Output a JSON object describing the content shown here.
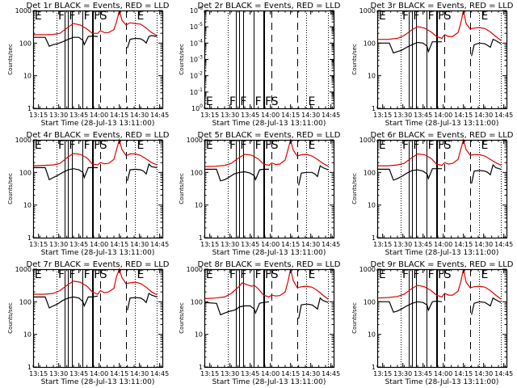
{
  "chart_data": {
    "type": "line",
    "layout": "3x3 grid",
    "xlabel": "Start Time (28-Jul-13 13:11:00)",
    "ylabel": "Counts/sec",
    "x_range_minutes_after_start": [
      0,
      96
    ],
    "x_ticks": [
      {
        "label": "13:15",
        "min": 4
      },
      {
        "label": "13:30",
        "min": 19
      },
      {
        "label": "13:45",
        "min": 34
      },
      {
        "label": "14:00",
        "min": 49
      },
      {
        "label": "14:15",
        "min": 64
      },
      {
        "label": "14:30",
        "min": 79
      },
      {
        "label": "14:45",
        "min": 94
      }
    ],
    "legend": {
      "black": "Events",
      "red": "LLD"
    },
    "series_colors": {
      "events": "#000000",
      "lld": "#e00000"
    },
    "event_lines": [
      {
        "min": 17.5,
        "style": "dotted"
      },
      {
        "min": 23.5,
        "style": "solid"
      },
      {
        "min": 25.5,
        "style": "solid"
      },
      {
        "min": 28.5,
        "style": "solid"
      },
      {
        "min": 36.5,
        "style": "solid"
      },
      {
        "min": 43.5,
        "style": "solid"
      },
      {
        "min": 44.3,
        "style": "solid"
      },
      {
        "min": 49.8,
        "style": "dashed"
      },
      {
        "min": 69.0,
        "style": "dashed"
      },
      {
        "min": 75.5,
        "style": "dotted"
      },
      {
        "min": 92.0,
        "style": "dotted"
      }
    ],
    "event_markers": [
      {
        "label": "E",
        "min": 0.5
      },
      {
        "label": "F",
        "min": 18.0
      },
      {
        "label": "F",
        "min": 26.0
      },
      {
        "label": "F",
        "min": 37.0
      },
      {
        "label": "F",
        "min": 44.5
      },
      {
        "label": "S",
        "min": 49.0
      },
      {
        "label": "E",
        "min": 76.5
      }
    ],
    "panels": [
      {
        "title": "Det 1r BLACK = Events, RED = LLD",
        "yscale": "log",
        "ylim": [
          1,
          1000
        ],
        "y_ticks": [
          "1",
          "10",
          "100",
          "1000"
        ],
        "lld": {
          "x": [
            0,
            8,
            15,
            20,
            26,
            30,
            35,
            40,
            44,
            48,
            50,
            53,
            56,
            60,
            62,
            64,
            66,
            69,
            72,
            76,
            80,
            84,
            88,
            92
          ],
          "y": [
            180,
            180,
            185,
            200,
            310,
            400,
            360,
            270,
            200,
            200,
            240,
            210,
            210,
            260,
            450,
            1100,
            500,
            360,
            420,
            400,
            380,
            290,
            210,
            170
          ]
        },
        "events": {
          "x": [
            0,
            8,
            9,
            12,
            15,
            18,
            22,
            26,
            30,
            34,
            37,
            38,
            41,
            44,
            48,
            50,
            52,
            54,
            56,
            69,
            70,
            72,
            76,
            80,
            82,
            84,
            86,
            88,
            92
          ],
          "y": [
            150,
            150,
            150,
            80,
            90,
            95,
            110,
            130,
            150,
            150,
            120,
            90,
            160,
            165,
            160,
            null,
            null,
            null,
            null,
            null,
            70,
            130,
            140,
            135,
            120,
            100,
            160,
            170,
            160
          ]
        }
      },
      {
        "title": "Det 2r BLACK = Events, RED = LLD",
        "yscale": "log",
        "y_ticks": [
          "10^0",
          "10^-1",
          "10^-2",
          "10^-3",
          "10^-4",
          "10^-5",
          "10^-6"
        ],
        "lld": {
          "x": [],
          "y": []
        },
        "events": {
          "x": [],
          "y": []
        }
      },
      {
        "title": "Det 3r BLACK = Events, RED = LLD",
        "yscale": "log",
        "ylim": [
          1,
          1000
        ],
        "y_ticks": [
          "1",
          "10",
          "100",
          "1000"
        ],
        "lld": {
          "x": [
            0,
            8,
            15,
            20,
            26,
            30,
            35,
            40,
            44,
            48,
            50,
            53,
            56,
            60,
            62,
            64,
            66,
            69,
            72,
            76,
            80,
            84,
            88,
            92
          ],
          "y": [
            130,
            130,
            140,
            170,
            260,
            320,
            290,
            220,
            160,
            140,
            180,
            160,
            160,
            210,
            400,
            1000,
            400,
            270,
            290,
            300,
            280,
            220,
            160,
            120
          ]
        },
        "events": {
          "x": [
            0,
            8,
            9,
            12,
            15,
            18,
            22,
            26,
            30,
            34,
            37,
            38,
            41,
            44,
            48,
            69,
            70,
            72,
            76,
            80,
            82,
            84,
            86,
            88,
            92
          ],
          "y": [
            100,
            100,
            100,
            50,
            55,
            60,
            75,
            90,
            105,
            100,
            80,
            55,
            110,
            110,
            110,
            null,
            40,
            90,
            100,
            95,
            85,
            75,
            130,
            120,
            95
          ]
        }
      },
      {
        "title": "Det 4r BLACK = Events, RED = LLD",
        "yscale": "log",
        "ylim": [
          1,
          1000
        ],
        "y_ticks": [
          "1",
          "10",
          "100",
          "1000"
        ],
        "lld": {
          "x": [
            0,
            8,
            15,
            20,
            26,
            30,
            35,
            40,
            44,
            48,
            50,
            53,
            56,
            60,
            62,
            64,
            66,
            69,
            72,
            76,
            80,
            84,
            88,
            92
          ],
          "y": [
            160,
            165,
            170,
            190,
            300,
            380,
            360,
            280,
            180,
            170,
            200,
            185,
            190,
            250,
            500,
            1200,
            500,
            330,
            370,
            370,
            330,
            260,
            200,
            170
          ]
        },
        "events": {
          "x": [
            0,
            8,
            9,
            12,
            15,
            18,
            22,
            26,
            30,
            34,
            37,
            38,
            41,
            44,
            48,
            69,
            70,
            72,
            76,
            80,
            82,
            84,
            86,
            88,
            92
          ],
          "y": [
            140,
            140,
            140,
            60,
            70,
            80,
            100,
            120,
            130,
            120,
            100,
            70,
            140,
            140,
            140,
            null,
            55,
            120,
            125,
            120,
            110,
            90,
            180,
            150,
            140
          ]
        }
      },
      {
        "title": "Det 5r BLACK = Events, RED = LLD",
        "yscale": "log",
        "ylim": [
          1,
          1000
        ],
        "y_ticks": [
          "1",
          "10",
          "100",
          "1000"
        ],
        "lld": {
          "x": [
            0,
            8,
            15,
            20,
            26,
            30,
            35,
            40,
            44,
            48,
            50,
            53,
            56,
            60,
            62,
            64,
            66,
            69,
            72,
            76,
            80,
            84,
            88,
            92
          ],
          "y": [
            150,
            155,
            165,
            190,
            290,
            360,
            340,
            260,
            180,
            165,
            195,
            175,
            180,
            240,
            480,
            1200,
            480,
            320,
            350,
            360,
            320,
            250,
            190,
            155
          ]
        },
        "events": {
          "x": [
            0,
            8,
            9,
            12,
            15,
            18,
            22,
            26,
            30,
            34,
            37,
            38,
            41,
            44,
            48,
            69,
            70,
            72,
            76,
            80,
            82,
            84,
            86,
            88,
            92
          ],
          "y": [
            125,
            125,
            125,
            55,
            60,
            70,
            90,
            100,
            105,
            95,
            80,
            60,
            120,
            125,
            125,
            null,
            40,
            95,
            100,
            100,
            90,
            75,
            160,
            140,
            120
          ]
        }
      },
      {
        "title": "Det 6r BLACK = Events, RED = LLD",
        "yscale": "log",
        "ylim": [
          1,
          1000
        ],
        "y_ticks": [
          "1",
          "10",
          "100",
          "1000"
        ],
        "lld": {
          "x": [
            0,
            8,
            15,
            20,
            26,
            30,
            35,
            40,
            44,
            48,
            50,
            53,
            56,
            60,
            62,
            64,
            66,
            69,
            72,
            76,
            80,
            84,
            88,
            92
          ],
          "y": [
            160,
            160,
            170,
            190,
            290,
            370,
            350,
            270,
            180,
            165,
            200,
            180,
            190,
            250,
            500,
            1300,
            500,
            340,
            350,
            350,
            320,
            250,
            200,
            165
          ]
        },
        "events": {
          "x": [
            0,
            8,
            9,
            12,
            15,
            18,
            22,
            26,
            30,
            34,
            37,
            38,
            41,
            44,
            48,
            69,
            70,
            72,
            76,
            80,
            82,
            84,
            86,
            88,
            92
          ],
          "y": [
            125,
            125,
            125,
            58,
            65,
            75,
            95,
            115,
            120,
            110,
            90,
            65,
            130,
            130,
            130,
            null,
            45,
            110,
            115,
            110,
            100,
            85,
            170,
            140,
            125
          ]
        }
      },
      {
        "title": "Det 7r BLACK = Events, RED = LLD",
        "yscale": "log",
        "ylim": [
          1,
          1000
        ],
        "y_ticks": [
          "1",
          "10",
          "100",
          "1000"
        ],
        "lld": {
          "x": [
            0,
            8,
            15,
            20,
            26,
            30,
            35,
            40,
            44,
            48,
            50,
            53,
            56,
            60,
            62,
            64,
            66,
            69,
            72,
            76,
            80,
            84,
            88,
            92
          ],
          "y": [
            170,
            170,
            180,
            220,
            340,
            430,
            400,
            300,
            200,
            170,
            220,
            190,
            200,
            260,
            600,
            1000,
            550,
            360,
            380,
            400,
            360,
            280,
            200,
            165
          ]
        },
        "events": {
          "x": [
            0,
            8,
            9,
            12,
            15,
            18,
            22,
            26,
            30,
            34,
            37,
            38,
            41,
            44,
            48,
            69,
            70,
            72,
            76,
            80,
            82,
            84,
            86,
            88,
            92
          ],
          "y": [
            140,
            140,
            140,
            65,
            75,
            85,
            110,
            130,
            140,
            130,
            100,
            75,
            140,
            140,
            150,
            null,
            55,
            130,
            135,
            130,
            115,
            95,
            180,
            160,
            140
          ]
        }
      },
      {
        "title": "Det 8r BLACK = Events, RED = LLD",
        "yscale": "log",
        "ylim": [
          1,
          1000
        ],
        "y_ticks": [
          "1",
          "10",
          "100",
          "1000"
        ],
        "lld": {
          "x": [
            0,
            8,
            15,
            20,
            26,
            28,
            32,
            35,
            37,
            40,
            44,
            48,
            50,
            53,
            56,
            60,
            62,
            64,
            66,
            69,
            72,
            76,
            80,
            84,
            88,
            92
          ],
          "y": [
            125,
            130,
            140,
            180,
            300,
            380,
            330,
            300,
            320,
            250,
            160,
            140,
            160,
            150,
            155,
            200,
            400,
            1000,
            450,
            270,
            290,
            300,
            280,
            220,
            160,
            120
          ]
        },
        "events": {
          "x": [
            0,
            8,
            9,
            12,
            15,
            18,
            22,
            24,
            26,
            30,
            34,
            37,
            38,
            41,
            44,
            48,
            69,
            70,
            72,
            76,
            80,
            82,
            84,
            86,
            88,
            92
          ],
          "y": [
            95,
            90,
            90,
            40,
            45,
            50,
            55,
            60,
            70,
            75,
            75,
            60,
            45,
            90,
            95,
            100,
            null,
            30,
            80,
            85,
            80,
            70,
            60,
            130,
            110,
            95
          ]
        }
      },
      {
        "title": "Det 9r BLACK = Events, RED = LLD",
        "yscale": "log",
        "ylim": [
          1,
          1000
        ],
        "y_ticks": [
          "1",
          "10",
          "100",
          "1000"
        ],
        "lld": {
          "x": [
            0,
            8,
            15,
            20,
            26,
            30,
            35,
            40,
            44,
            48,
            50,
            53,
            56,
            60,
            62,
            64,
            66,
            69,
            72,
            76,
            80,
            84,
            88,
            92
          ],
          "y": [
            130,
            135,
            145,
            170,
            260,
            320,
            290,
            220,
            160,
            140,
            180,
            160,
            160,
            210,
            400,
            1000,
            400,
            270,
            290,
            300,
            280,
            220,
            160,
            120
          ]
        },
        "events": {
          "x": [
            0,
            8,
            9,
            12,
            15,
            18,
            22,
            26,
            30,
            34,
            37,
            38,
            41,
            44,
            48,
            69,
            70,
            72,
            76,
            80,
            82,
            84,
            86,
            88,
            92
          ],
          "y": [
            100,
            100,
            100,
            48,
            52,
            60,
            75,
            90,
            100,
            95,
            80,
            55,
            100,
            105,
            100,
            null,
            40,
            90,
            100,
            95,
            85,
            75,
            130,
            115,
            95
          ]
        }
      }
    ]
  }
}
